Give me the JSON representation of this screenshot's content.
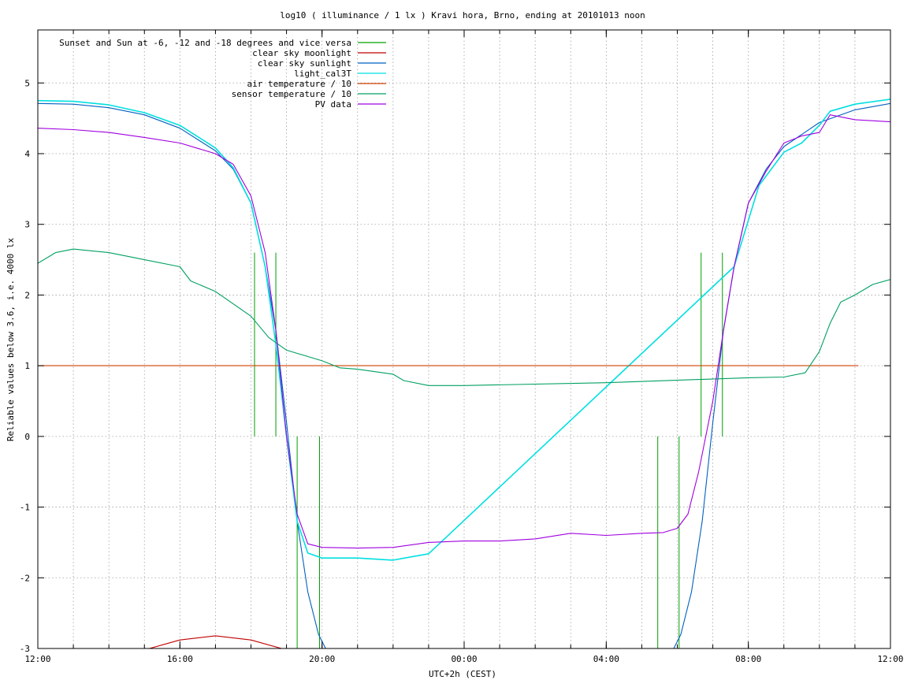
{
  "chart_data": {
    "type": "line",
    "title": "log10 ( illuminance / 1 lx ) Kravi hora, Brno, ending at 20101013 noon",
    "xlabel": "UTC+2h (CEST)",
    "ylabel": "Reliable values below 3.6, i.e. 4000 lx",
    "x_unit": "hours after 12:00 on 20101012",
    "xlim": [
      0,
      24
    ],
    "ylim": [
      -3,
      5.75
    ],
    "x_ticks": [
      {
        "x": 0,
        "label": "12:00"
      },
      {
        "x": 4,
        "label": "16:00"
      },
      {
        "x": 8,
        "label": "20:00"
      },
      {
        "x": 12,
        "label": "00:00"
      },
      {
        "x": 16,
        "label": "04:00"
      },
      {
        "x": 20,
        "label": "08:00"
      },
      {
        "x": 24,
        "label": "12:00"
      }
    ],
    "x_grid": [
      1,
      2,
      3,
      4,
      5,
      6,
      7,
      8,
      9,
      10,
      11,
      12,
      13,
      14,
      15,
      16,
      17,
      18,
      19,
      20,
      21,
      22,
      23
    ],
    "y_ticks": [
      {
        "y": -3,
        "label": "-3"
      },
      {
        "y": -2,
        "label": "-2"
      },
      {
        "y": -1,
        "label": "-1"
      },
      {
        "y": 0,
        "label": "0"
      },
      {
        "y": 1,
        "label": "1"
      },
      {
        "y": 2,
        "label": "2"
      },
      {
        "y": 3,
        "label": "3"
      },
      {
        "y": 4,
        "label": "4"
      },
      {
        "y": 5,
        "label": "5"
      }
    ],
    "grid": true,
    "legend_position": "top-left",
    "sun_lines": [
      {
        "x": 6.1,
        "y0": 0,
        "y1": 2.6
      },
      {
        "x": 6.7,
        "y0": 0,
        "y1": 2.6
      },
      {
        "x": 7.3,
        "y0": -3,
        "y1": 0
      },
      {
        "x": 7.93,
        "y0": -3,
        "y1": 0
      },
      {
        "x": 17.45,
        "y0": -3,
        "y1": 0
      },
      {
        "x": 18.05,
        "y0": -3,
        "y1": 0
      },
      {
        "x": 18.67,
        "y0": 0,
        "y1": 2.6
      },
      {
        "x": 19.27,
        "y0": 0,
        "y1": 2.6
      }
    ],
    "series": [
      {
        "name": "Sunset and Sun at -6, -12 and -18 degrees and vice versa",
        "color": "#00a000",
        "legend_only": true,
        "points": []
      },
      {
        "name": "clear sky moonlight",
        "color": "#c00000",
        "points": [
          [
            3.0,
            -3.02
          ],
          [
            4.0,
            -2.88
          ],
          [
            5.0,
            -2.82
          ],
          [
            6.0,
            -2.88
          ],
          [
            7.0,
            -3.02
          ]
        ]
      },
      {
        "name": "clear sky sunlight",
        "color": "#0060c0",
        "points": [
          [
            0,
            4.71
          ],
          [
            1,
            4.7
          ],
          [
            2,
            4.65
          ],
          [
            3,
            4.55
          ],
          [
            4,
            4.36
          ],
          [
            5,
            4.04
          ],
          [
            5.5,
            3.78
          ],
          [
            6.0,
            3.3
          ],
          [
            6.4,
            2.4
          ],
          [
            6.7,
            1.5
          ],
          [
            7.0,
            0.2
          ],
          [
            7.3,
            -1.2
          ],
          [
            7.6,
            -2.2
          ],
          [
            7.9,
            -2.8
          ],
          [
            8.1,
            -3.0
          ],
          [
            17.9,
            -3.0
          ],
          [
            18.1,
            -2.8
          ],
          [
            18.4,
            -2.2
          ],
          [
            18.7,
            -1.2
          ],
          [
            19.0,
            0.2
          ],
          [
            19.3,
            1.5
          ],
          [
            19.6,
            2.4
          ],
          [
            20.0,
            3.3
          ],
          [
            20.5,
            3.78
          ],
          [
            21,
            4.1
          ],
          [
            22,
            4.44
          ],
          [
            23,
            4.62
          ],
          [
            24,
            4.71
          ]
        ]
      },
      {
        "name": "light_cal3T",
        "color": "#00e0e0",
        "points": [
          [
            0,
            4.75
          ],
          [
            1,
            4.74
          ],
          [
            2,
            4.69
          ],
          [
            3,
            4.58
          ],
          [
            4,
            4.4
          ],
          [
            5,
            4.08
          ],
          [
            5.5,
            3.8
          ],
          [
            6.0,
            3.3
          ],
          [
            6.4,
            2.4
          ],
          [
            6.7,
            1.3
          ],
          [
            7.0,
            0.0
          ],
          [
            7.3,
            -1.2
          ],
          [
            7.6,
            -1.65
          ],
          [
            8.0,
            -1.72
          ],
          [
            9.0,
            -1.72
          ],
          [
            10.0,
            -1.75
          ],
          [
            11.0,
            -1.66
          ],
          [
            19.6,
            2.4
          ],
          [
            20.3,
            3.55
          ],
          [
            21.0,
            4.02
          ],
          [
            21.5,
            4.15
          ],
          [
            22.0,
            4.4
          ],
          [
            22.3,
            4.6
          ],
          [
            23.0,
            4.7
          ],
          [
            24.0,
            4.77
          ]
        ]
      },
      {
        "name": "air temperature / 10",
        "color": "#d04000",
        "points": [
          [
            0,
            1.0
          ],
          [
            23.1,
            1.0
          ]
        ]
      },
      {
        "name": "sensor temperature / 10",
        "color": "#00a060",
        "points": [
          [
            0,
            2.45
          ],
          [
            0.5,
            2.6
          ],
          [
            1,
            2.65
          ],
          [
            2,
            2.6
          ],
          [
            3,
            2.5
          ],
          [
            4,
            2.4
          ],
          [
            4.3,
            2.2
          ],
          [
            5,
            2.05
          ],
          [
            6,
            1.7
          ],
          [
            6.5,
            1.4
          ],
          [
            7,
            1.22
          ],
          [
            8,
            1.07
          ],
          [
            8.5,
            0.97
          ],
          [
            9,
            0.95
          ],
          [
            10,
            0.88
          ],
          [
            10.3,
            0.79
          ],
          [
            11,
            0.72
          ],
          [
            12,
            0.72
          ],
          [
            16,
            0.76
          ],
          [
            20,
            0.83
          ],
          [
            21.0,
            0.84
          ],
          [
            21.6,
            0.9
          ],
          [
            22.0,
            1.2
          ],
          [
            22.3,
            1.6
          ],
          [
            22.6,
            1.9
          ],
          [
            23.0,
            2.0
          ],
          [
            23.5,
            2.15
          ],
          [
            24.0,
            2.22
          ]
        ]
      },
      {
        "name": "PV data",
        "color": "#a000e0",
        "points": [
          [
            0,
            4.36
          ],
          [
            1,
            4.34
          ],
          [
            2,
            4.3
          ],
          [
            3,
            4.23
          ],
          [
            4,
            4.15
          ],
          [
            5,
            4.0
          ],
          [
            5.5,
            3.85
          ],
          [
            6.0,
            3.4
          ],
          [
            6.4,
            2.6
          ],
          [
            6.7,
            1.5
          ],
          [
            7.0,
            0.0
          ],
          [
            7.3,
            -1.1
          ],
          [
            7.6,
            -1.52
          ],
          [
            8.0,
            -1.57
          ],
          [
            9.0,
            -1.58
          ],
          [
            10.0,
            -1.57
          ],
          [
            11.0,
            -1.5
          ],
          [
            12,
            -1.48
          ],
          [
            13,
            -1.48
          ],
          [
            14,
            -1.45
          ],
          [
            15,
            -1.37
          ],
          [
            16,
            -1.4
          ],
          [
            17,
            -1.37
          ],
          [
            17.6,
            -1.36
          ],
          [
            18.0,
            -1.3
          ],
          [
            18.3,
            -1.1
          ],
          [
            18.6,
            -0.5
          ],
          [
            19.0,
            0.5
          ],
          [
            19.3,
            1.5
          ],
          [
            19.6,
            2.4
          ],
          [
            20.0,
            3.3
          ],
          [
            20.5,
            3.75
          ],
          [
            21.0,
            4.15
          ],
          [
            21.5,
            4.25
          ],
          [
            22.0,
            4.3
          ],
          [
            22.3,
            4.55
          ],
          [
            23.0,
            4.48
          ],
          [
            24.0,
            4.45
          ]
        ]
      }
    ]
  }
}
